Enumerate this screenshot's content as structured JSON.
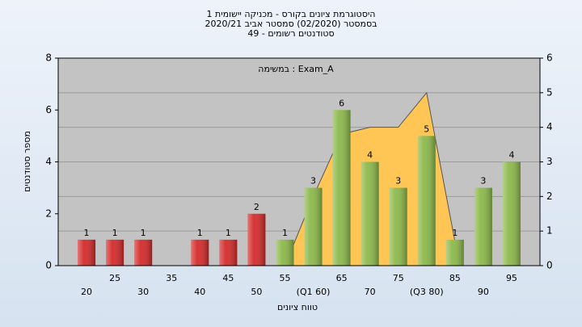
{
  "chart_data": {
    "type": "bar",
    "title": [
      "היסטוגרמת ציונים בקורס - מכניקה יישומית 1",
      "בסמסטר  (02/2020)  סמסטר אביב 2020/21",
      "סטודנטים רשומים - 49"
    ],
    "annotation": "במשימה : Exam_A",
    "x_label": "טווח ציונים",
    "y_label": "מספר סטודנטים",
    "categories": [
      "20",
      "25",
      "30",
      "35",
      "40",
      "45",
      "50",
      "55",
      "(Q1 60)",
      "65",
      "70",
      "75",
      "(Q3 80)",
      "85",
      "90",
      "95"
    ],
    "series": [
      {
        "type": "bar",
        "values": [
          1,
          1,
          1,
          0,
          1,
          1,
          2,
          1,
          3,
          6,
          4,
          3,
          5,
          1,
          3,
          4
        ],
        "colors": [
          "#d42a2a",
          "#d42a2a",
          "#d42a2a",
          "#d42a2a",
          "#d42a2a",
          "#d42a2a",
          "#d42a2a",
          "#8cb84a",
          "#8cb84a",
          "#8cb84a",
          "#8cb84a",
          "#8cb84a",
          "#8cb84a",
          "#8cb84a",
          "#8cb84a",
          "#8cb84a"
        ]
      },
      {
        "type": "area",
        "axis": "y2",
        "color": "#ffc655",
        "values": [
          null,
          null,
          null,
          null,
          null,
          null,
          null,
          0,
          2,
          3.8,
          4,
          4,
          5,
          0.7,
          null,
          null
        ]
      }
    ],
    "ylim": [
      0,
      8
    ],
    "yticks": [
      0,
      2,
      4,
      6,
      8
    ],
    "y2lim": [
      0,
      6
    ],
    "y2ticks": [
      0,
      1,
      2,
      3,
      4,
      5,
      6
    ],
    "grid": true
  }
}
